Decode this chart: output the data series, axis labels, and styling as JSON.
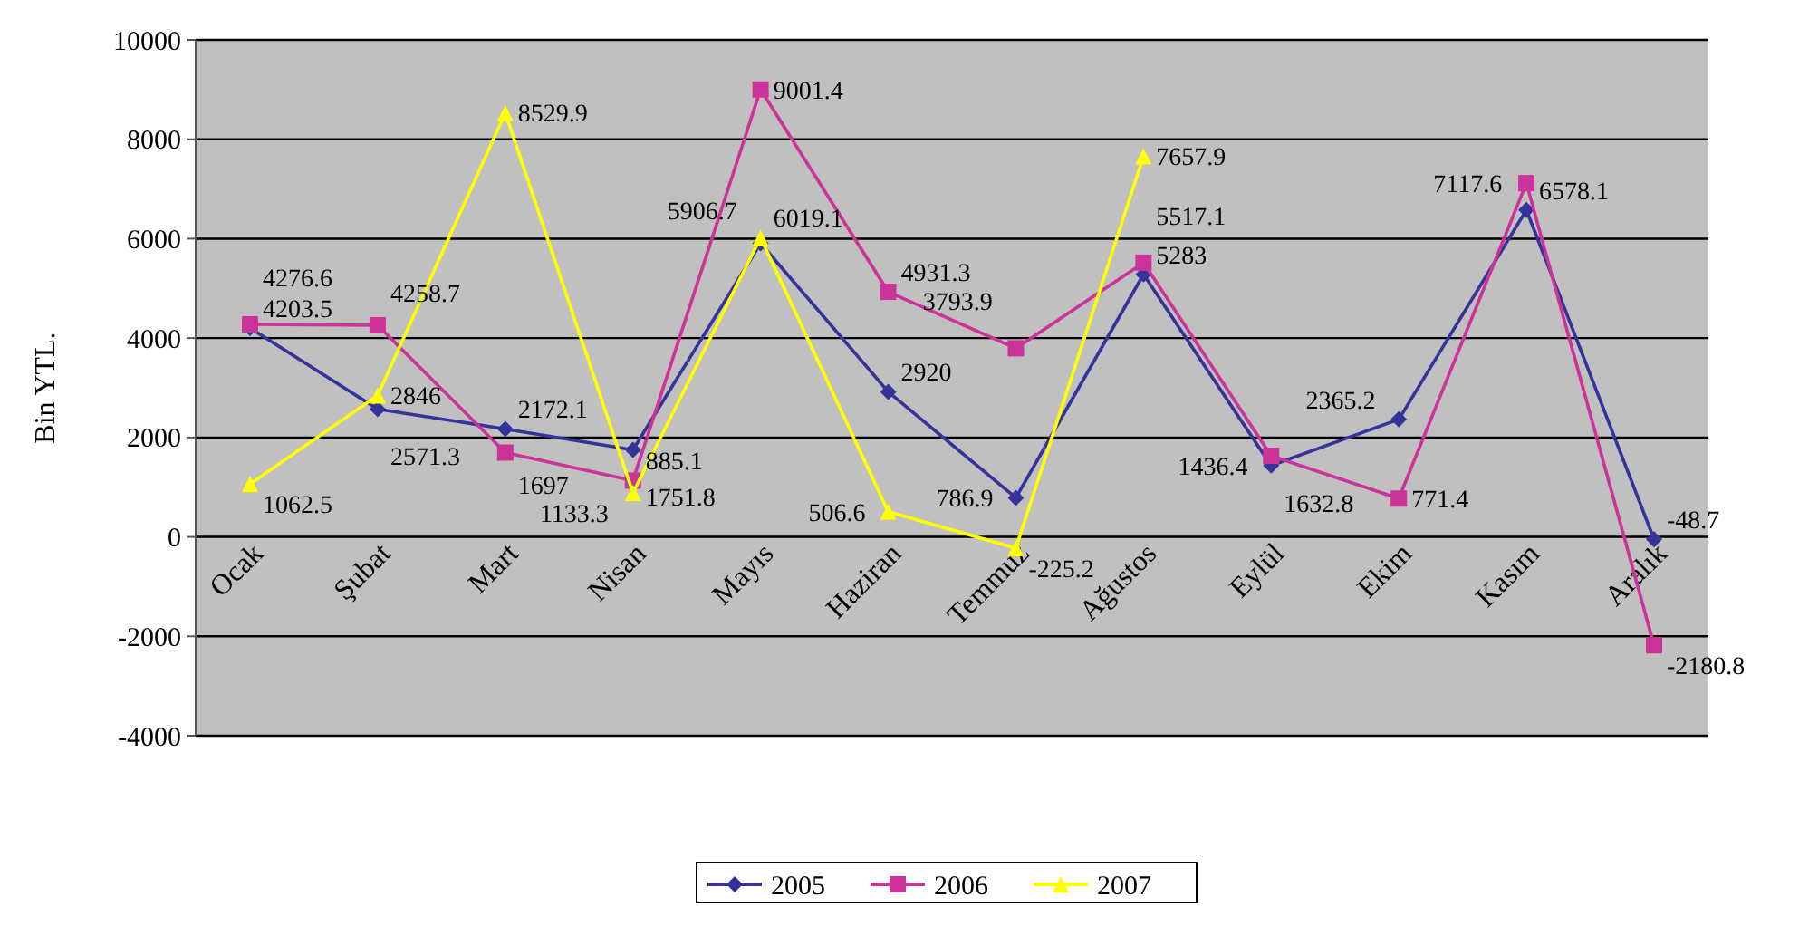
{
  "chart_data": {
    "type": "line",
    "ylabel": "Bin YTL.",
    "categories": [
      "Ocak",
      "Şubat",
      "Mart",
      "Nisan",
      "Mayıs",
      "Haziran",
      "Temmuz",
      "Ağustos",
      "Eylül",
      "Ekim",
      "Kasım",
      "Aralık"
    ],
    "series": [
      {
        "name": "2005",
        "color": "#333399",
        "marker": "diamond",
        "values": [
          4203.5,
          2571.3,
          2172.1,
          1751.8,
          5906.7,
          2920,
          786.9,
          5283,
          1436.4,
          2365.2,
          6578.1,
          -48.7
        ]
      },
      {
        "name": "2006",
        "color": "#cc3399",
        "marker": "square",
        "values": [
          4276.6,
          4258.7,
          1697,
          1133.3,
          9001.4,
          4931.3,
          3793.9,
          5517.1,
          1632.8,
          771.4,
          7117.6,
          -2180.8
        ]
      },
      {
        "name": "2007",
        "color": "#ffff00",
        "marker": "triangle",
        "values": [
          1062.5,
          2846,
          8529.9,
          885.1,
          6019.1,
          506.6,
          -225.2,
          7657.9,
          null,
          null,
          null,
          null
        ]
      }
    ],
    "ylim": [
      -4000,
      10000
    ],
    "yticks": [
      -4000,
      -2000,
      0,
      2000,
      4000,
      6000,
      8000,
      10000
    ],
    "grid": "y",
    "legend": "bottom",
    "data_labels": true
  }
}
